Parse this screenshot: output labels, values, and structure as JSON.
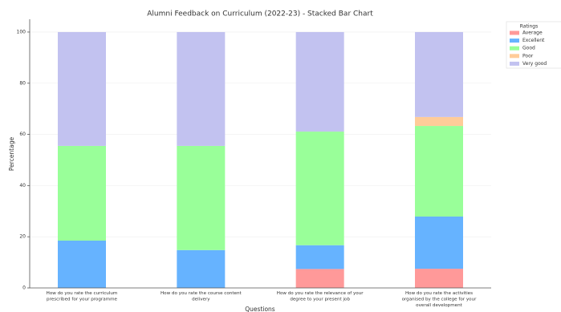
{
  "chart_data": {
    "type": "stacked_bar",
    "title": "Alumni Feedback on Curriculum (2022-23) - Stacked Bar Chart",
    "x_label": "Questions",
    "y_label": "Percentage",
    "categories": [
      "How do you rate the curriculum\nprescribed for your programme",
      "How do you rate the course content\ndelivery",
      "How do you rate the relevance of your\ndegree to your present job",
      "How do you rate the activities\norganised by the college for your\noverall development"
    ],
    "series": [
      {
        "name": "Average",
        "color": "#ff9999",
        "values": [
          0,
          0,
          7.4,
          7.5
        ]
      },
      {
        "name": "Excellent",
        "color": "#66b3ff",
        "values": [
          18.5,
          14.8,
          9.3,
          20.4
        ]
      },
      {
        "name": "Good",
        "color": "#99ff99",
        "values": [
          37,
          40.7,
          44.4,
          35.4
        ]
      },
      {
        "name": "Poor",
        "color": "#ffcc99",
        "values": [
          0,
          0,
          0,
          3.5
        ]
      },
      {
        "name": "Very good",
        "color": "#c2c2f0",
        "values": [
          44.5,
          44.5,
          38.9,
          33.2
        ]
      }
    ],
    "legend_title": "Ratings",
    "legend": "outside-upper-right",
    "ylim": [
      0,
      105
    ],
    "yticks": [
      0,
      20,
      40,
      60,
      80,
      100
    ],
    "grid": true
  }
}
